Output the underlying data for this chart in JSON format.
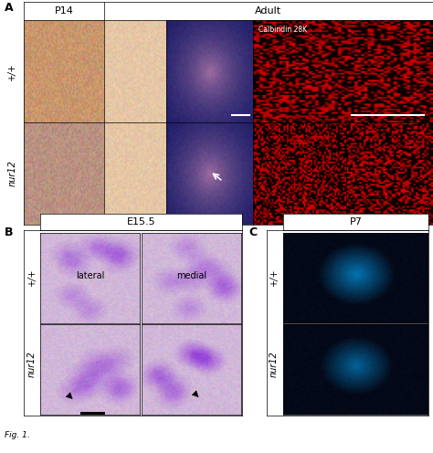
{
  "figure_width": 4.74,
  "figure_height": 4.96,
  "background_color": "#ffffff",
  "panel_A": {
    "label": "A",
    "header_P14": "P14",
    "header_Adult": "Adult",
    "header_Calbindin": "Calbindin 28K",
    "row_labels": [
      "+/+",
      "nur12"
    ]
  },
  "panel_B": {
    "label": "B",
    "header": "E15.5",
    "sub_label_lateral": "lateral",
    "sub_label_medial": "medial",
    "row_labels": [
      "+/+",
      "nur12"
    ]
  },
  "panel_C": {
    "label": "C",
    "header": "P7",
    "row_labels": [
      "+/+",
      "nur12"
    ]
  },
  "caption_text": "Fig. 1.",
  "label_fontsize": 9,
  "header_fontsize": 8,
  "row_label_fontsize": 7,
  "caption_fontsize": 6.5
}
